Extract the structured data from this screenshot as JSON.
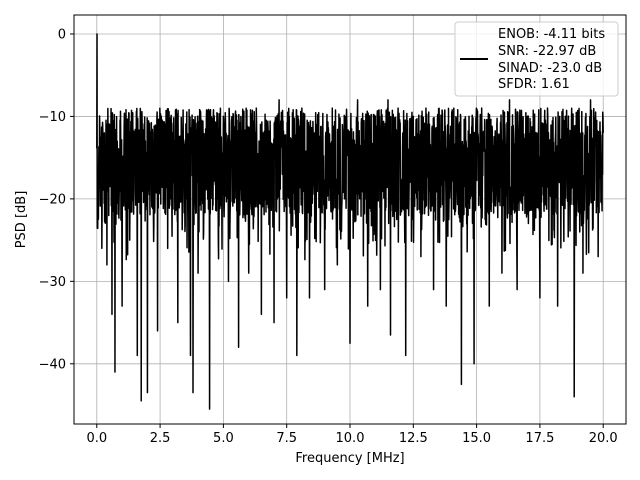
{
  "chart_data": {
    "type": "line",
    "xlabel": "Frequency [MHz]",
    "ylabel": "PSD [dB]",
    "xlim": [
      -0.9,
      20.9
    ],
    "ylim": [
      -47.3,
      2.3
    ],
    "xticks": [
      0.0,
      2.5,
      5.0,
      7.5,
      10.0,
      12.5,
      15.0,
      17.5,
      20.0
    ],
    "xtick_labels": [
      "0.0",
      "2.5",
      "5.0",
      "7.5",
      "10.0",
      "12.5",
      "15.0",
      "17.5",
      "20.0"
    ],
    "yticks": [
      0,
      -10,
      -20,
      -30,
      -40
    ],
    "ytick_labels": [
      "0",
      "−10",
      "−20",
      "−30",
      "−40"
    ],
    "grid": true,
    "legend_position": "top-right",
    "legend_entries": [
      "ENOB: -4.11 bits",
      "SNR: -22.97 dB",
      "SINAD: -23.0 dB",
      "SFDR: 1.61"
    ],
    "series": [
      {
        "color": "#000000",
        "description": "noise-like PSD trace",
        "points": [
          [
            0.0,
            -8
          ],
          [
            0.03,
            0.0
          ],
          [
            0.06,
            -12
          ],
          [
            0.1,
            -25
          ],
          [
            0.15,
            -14
          ],
          [
            0.2,
            -26
          ],
          [
            0.3,
            -12
          ],
          [
            0.4,
            -28
          ],
          [
            0.5,
            -15
          ],
          [
            0.6,
            -34
          ],
          [
            0.7,
            -13
          ],
          [
            0.72,
            -41
          ],
          [
            0.9,
            -14
          ],
          [
            1.0,
            -33
          ],
          [
            1.1,
            -11
          ],
          [
            1.3,
            -25
          ],
          [
            1.5,
            -13
          ],
          [
            1.6,
            -39
          ],
          [
            1.75,
            -44.5
          ],
          [
            1.9,
            -16
          ],
          [
            2.0,
            -43.5
          ],
          [
            2.2,
            -12
          ],
          [
            2.4,
            -36
          ],
          [
            2.5,
            -11
          ],
          [
            2.6,
            -14
          ],
          [
            2.8,
            -26
          ],
          [
            3.0,
            -12
          ],
          [
            3.2,
            -35
          ],
          [
            3.5,
            -13
          ],
          [
            3.7,
            -39
          ],
          [
            3.8,
            -43.5
          ],
          [
            3.85,
            -11
          ],
          [
            4.0,
            -29
          ],
          [
            4.2,
            -14
          ],
          [
            4.45,
            -45.5
          ],
          [
            4.6,
            -10
          ],
          [
            4.8,
            -25
          ],
          [
            5.0,
            -10
          ],
          [
            5.2,
            -30
          ],
          [
            5.35,
            -14
          ],
          [
            5.6,
            -38
          ],
          [
            5.8,
            -12
          ],
          [
            6.0,
            -29
          ],
          [
            6.3,
            -9
          ],
          [
            6.5,
            -34
          ],
          [
            6.7,
            -11
          ],
          [
            7.0,
            -35
          ],
          [
            7.2,
            -8
          ],
          [
            7.5,
            -32
          ],
          [
            7.6,
            -10
          ],
          [
            7.9,
            -39
          ],
          [
            8.1,
            -9
          ],
          [
            8.4,
            -32
          ],
          [
            8.7,
            -11
          ],
          [
            9.0,
            -31
          ],
          [
            9.3,
            -9
          ],
          [
            9.5,
            -28
          ],
          [
            9.7,
            -11
          ],
          [
            10.0,
            -37.5
          ],
          [
            10.3,
            -8
          ],
          [
            10.7,
            -33
          ],
          [
            11.0,
            -10
          ],
          [
            11.2,
            -31
          ],
          [
            11.5,
            -8
          ],
          [
            11.6,
            -36.5
          ],
          [
            11.9,
            -9
          ],
          [
            12.2,
            -39
          ],
          [
            12.5,
            -10
          ],
          [
            12.8,
            -27
          ],
          [
            13.0,
            -9
          ],
          [
            13.3,
            -31
          ],
          [
            13.6,
            -11
          ],
          [
            13.8,
            -33
          ],
          [
            14.1,
            -9
          ],
          [
            14.4,
            -42.5
          ],
          [
            14.7,
            -10
          ],
          [
            14.9,
            -40
          ],
          [
            15.2,
            -9
          ],
          [
            15.5,
            -33
          ],
          [
            15.8,
            -11
          ],
          [
            16.0,
            -29
          ],
          [
            16.3,
            -8
          ],
          [
            16.6,
            -31
          ],
          [
            17.0,
            -10
          ],
          [
            17.5,
            -32
          ],
          [
            17.8,
            -9
          ],
          [
            18.2,
            -33
          ],
          [
            18.5,
            -10
          ],
          [
            18.85,
            -44
          ],
          [
            19.0,
            -11
          ],
          [
            19.2,
            -29
          ],
          [
            19.5,
            -8
          ],
          [
            19.8,
            -27
          ],
          [
            20.0,
            -12
          ]
        ],
        "noise_band": {
          "upper": -9,
          "lower": -22
        }
      }
    ]
  }
}
